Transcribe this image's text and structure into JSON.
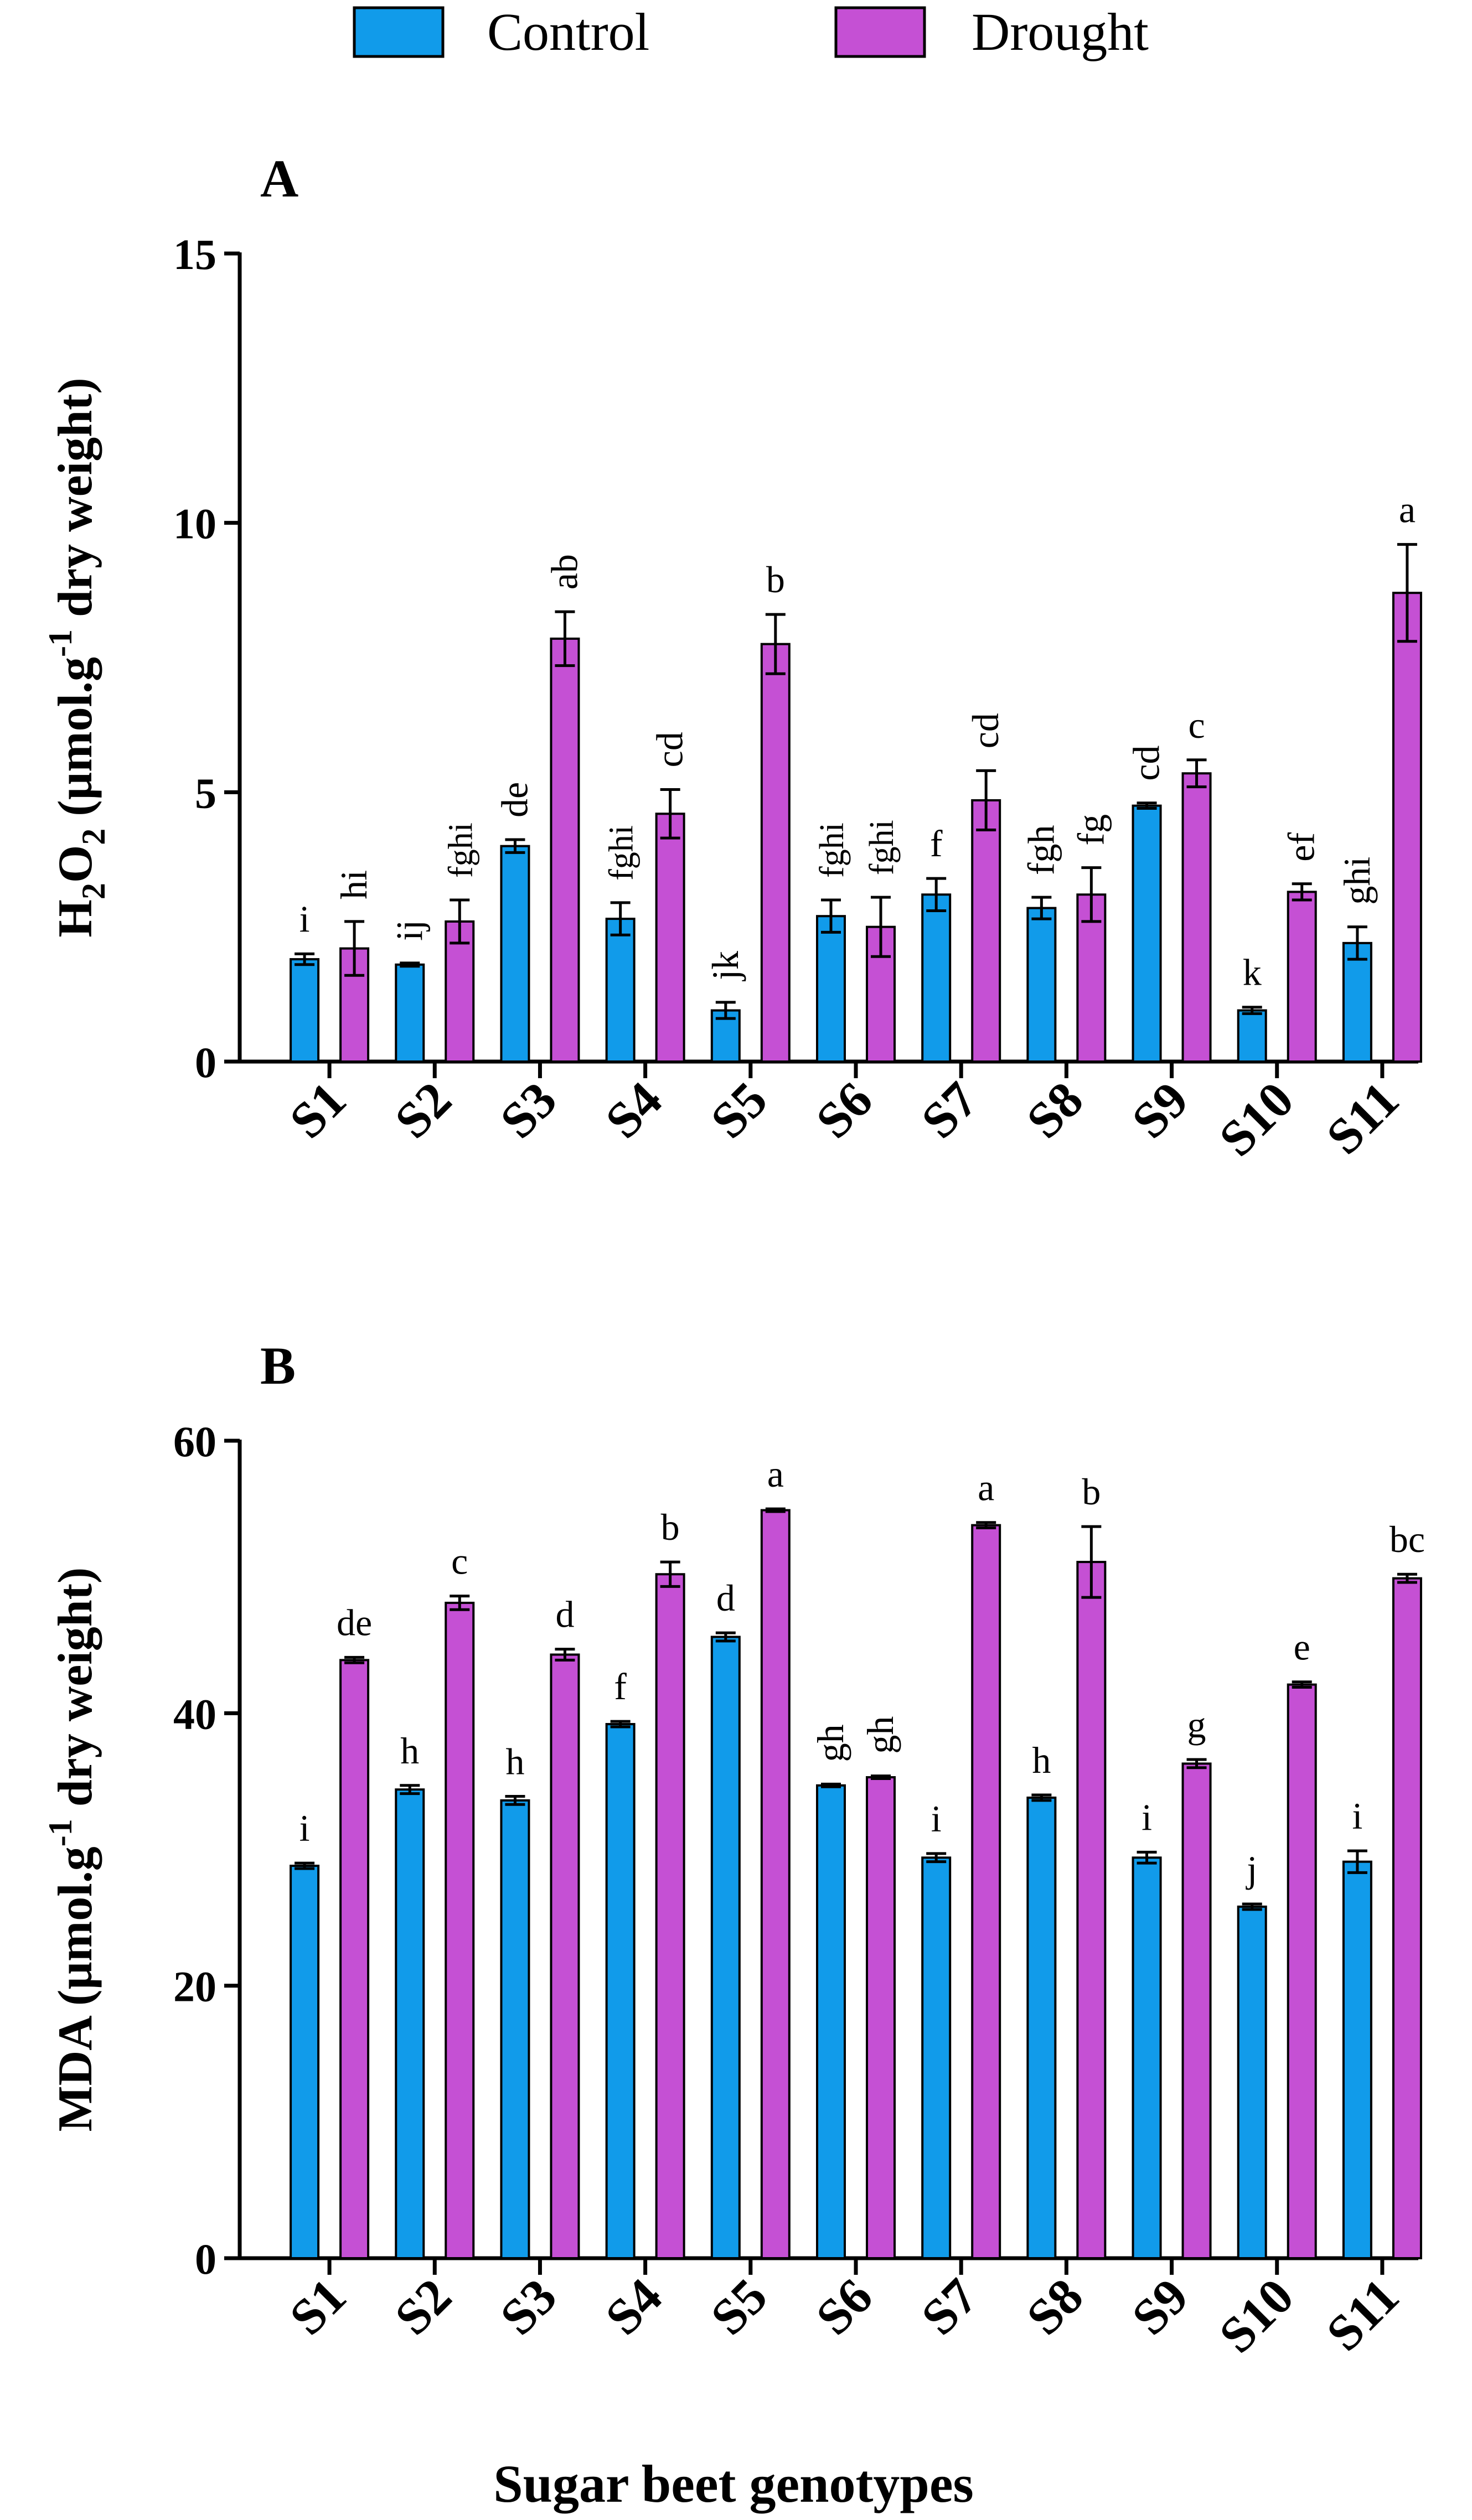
{
  "legend": {
    "items": [
      {
        "label": "Control",
        "color": "#119bea"
      },
      {
        "label": "Drought",
        "color": "#c550d4"
      }
    ],
    "placement": "top-center"
  },
  "shared_xlabel": "Sugar beet genotypes",
  "chart_data": [
    {
      "type": "bar",
      "panel_label": "A",
      "ylabel_parts": [
        "H",
        "2",
        "O",
        "2",
        " (µmol.g",
        "-1",
        " dry weight)"
      ],
      "ylim": [
        0,
        15
      ],
      "yticks": [
        0,
        5,
        10,
        15
      ],
      "categories": [
        "S1",
        "S2",
        "S3",
        "S4",
        "S5",
        "S6",
        "S7",
        "S8",
        "S9",
        "S10",
        "S11"
      ],
      "series": [
        {
          "name": "Control",
          "values": [
            1.9,
            1.8,
            4.0,
            2.65,
            0.95,
            2.7,
            3.1,
            2.85,
            4.75,
            0.95,
            2.2
          ],
          "errors": [
            0.1,
            0.03,
            0.12,
            0.3,
            0.15,
            0.3,
            0.3,
            0.2,
            0.05,
            0.06,
            0.3
          ],
          "labels": [
            "i",
            "ij",
            "de",
            "fghi",
            "jk",
            "fghi",
            "f",
            "fgh",
            "cd",
            "k",
            "ghi"
          ]
        },
        {
          "name": "Drought",
          "values": [
            2.1,
            2.6,
            7.85,
            4.6,
            7.75,
            2.5,
            4.85,
            3.1,
            5.35,
            3.15,
            8.7
          ],
          "errors": [
            0.5,
            0.4,
            0.5,
            0.45,
            0.55,
            0.55,
            0.55,
            0.5,
            0.25,
            0.15,
            0.9
          ],
          "labels": [
            "hi",
            "fghi",
            "ab",
            "cd",
            "b",
            "fghi",
            "cd",
            "fg",
            "c",
            "ef",
            "a"
          ]
        }
      ]
    },
    {
      "type": "bar",
      "panel_label": "B",
      "ylabel_parts": [
        "MDA (µmol.g",
        "-1",
        " dry weight)"
      ],
      "ylim": [
        0,
        60
      ],
      "yticks": [
        0,
        20,
        40,
        60
      ],
      "categories": [
        "S1",
        "S2",
        "S3",
        "S4",
        "S5",
        "S6",
        "S7",
        "S8",
        "S9",
        "S10",
        "S11"
      ],
      "series": [
        {
          "name": "Control",
          "values": [
            28.8,
            34.4,
            33.6,
            39.2,
            45.6,
            34.7,
            29.4,
            33.8,
            29.4,
            25.8,
            29.1
          ],
          "errors": [
            0.2,
            0.3,
            0.3,
            0.2,
            0.3,
            0.1,
            0.3,
            0.2,
            0.4,
            0.2,
            0.8
          ],
          "labels": [
            "i",
            "h",
            "h",
            "f",
            "d",
            "gh",
            "i",
            "h",
            "i",
            "j",
            "i"
          ]
        },
        {
          "name": "Drought",
          "values": [
            43.9,
            48.1,
            44.3,
            50.2,
            54.9,
            35.3,
            53.8,
            51.1,
            36.3,
            42.1,
            49.9
          ],
          "errors": [
            0.2,
            0.5,
            0.4,
            0.9,
            0.1,
            0.1,
            0.2,
            2.6,
            0.3,
            0.2,
            0.3
          ],
          "labels": [
            "de",
            "c",
            "d",
            "b",
            "a",
            "gh",
            "a",
            "b",
            "g",
            "e",
            "bc"
          ]
        }
      ]
    }
  ]
}
